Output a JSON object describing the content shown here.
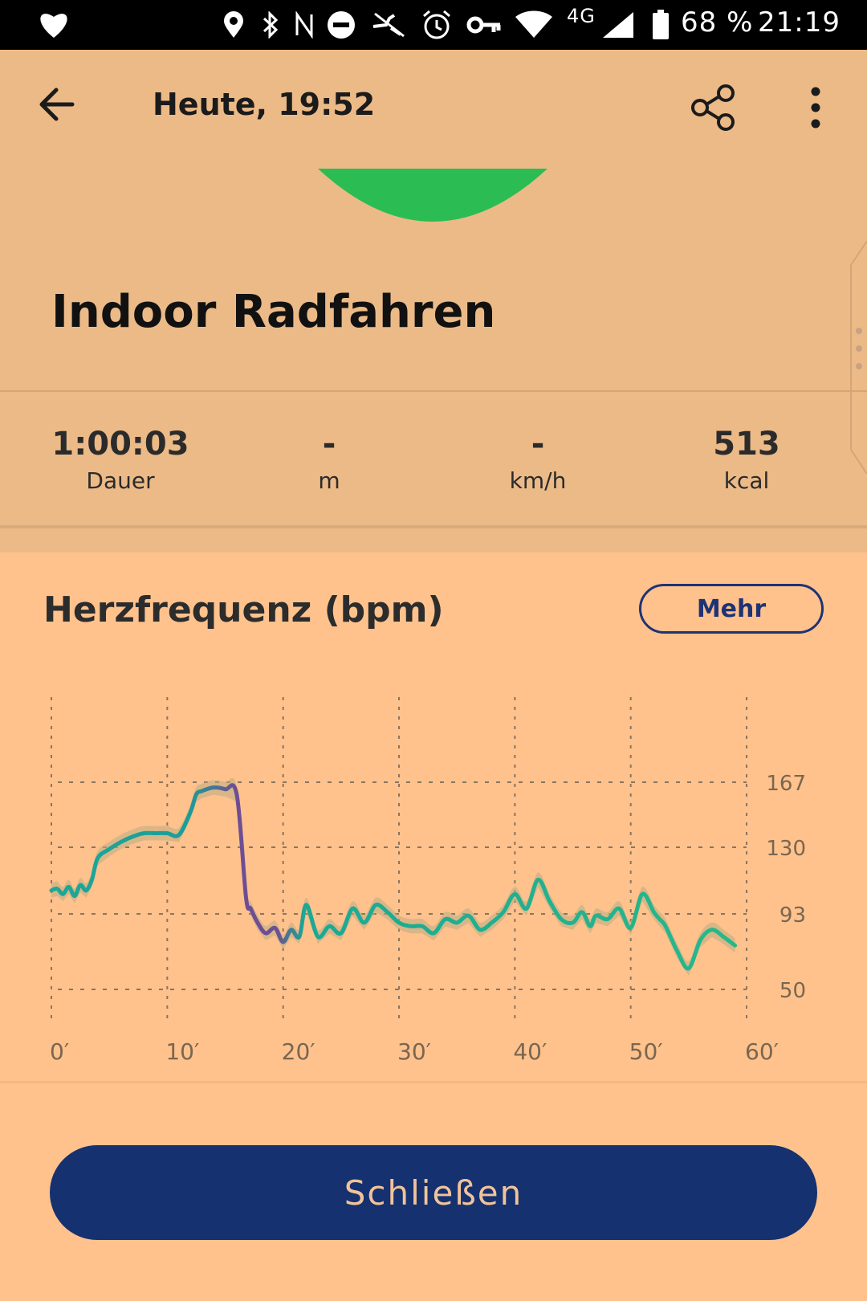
{
  "status_bar": {
    "icons": [
      "heart-icon",
      "location-icon",
      "bluetooth-icon",
      "nfc-icon",
      "do-not-disturb-icon",
      "no-sync-icon",
      "alarm-icon",
      "vpn-key-icon",
      "wifi-icon",
      "signal-icon",
      "battery-icon"
    ],
    "network": "4G",
    "battery": "68 %",
    "time": "21:19"
  },
  "header": {
    "title": "Heute, 19:52"
  },
  "activity": {
    "name": "Indoor Radfahren",
    "badge_color": "#2bbd53",
    "stats": [
      {
        "value": "1:00:03",
        "unit": "Dauer"
      },
      {
        "value": "-",
        "unit": "m"
      },
      {
        "value": "-",
        "unit": "km/h"
      },
      {
        "value": "513",
        "unit": "kcal"
      }
    ]
  },
  "heart_rate": {
    "title": "Herzfrequenz (bpm)",
    "more_label": "Mehr"
  },
  "chart_data": {
    "type": "line",
    "title": "Herzfrequenz (bpm)",
    "x_ticks": [
      "0′",
      "10′",
      "20′",
      "30′",
      "40′",
      "50′",
      "60′"
    ],
    "y_ticks": [
      "167",
      "130",
      "93",
      "50"
    ],
    "y_tick_values": [
      167,
      130,
      93,
      50
    ],
    "xlim": [
      0,
      60
    ],
    "grid": true,
    "series": [
      {
        "x": [
          0,
          0.5,
          1,
          1.5,
          2,
          2.5,
          3,
          3.5,
          4,
          5,
          6,
          7,
          8,
          9,
          10,
          11,
          12,
          12.5,
          13,
          14,
          15,
          16,
          16.8,
          17.2,
          17.8,
          18.5,
          19.3,
          20,
          20.7,
          21.4,
          22,
          23,
          24,
          25,
          26,
          27,
          28,
          29,
          30,
          31,
          32,
          33,
          34,
          35,
          36,
          37,
          38,
          39,
          40,
          41,
          42,
          43,
          44,
          45,
          45.8,
          46.5,
          47,
          48,
          49,
          50,
          51,
          52,
          52.5,
          53,
          54,
          55,
          56,
          57,
          58,
          59
        ],
        "y": [
          106,
          107,
          104,
          108,
          103,
          109,
          106,
          112,
          124,
          129,
          133,
          136,
          138,
          138,
          138,
          137,
          150,
          160,
          162,
          164,
          163,
          160,
          102,
          96,
          88,
          82,
          85,
          77,
          84,
          80,
          98,
          80,
          86,
          82,
          96,
          88,
          98,
          94,
          88,
          86,
          86,
          82,
          90,
          88,
          92,
          84,
          88,
          94,
          104,
          96,
          112,
          100,
          90,
          88,
          94,
          86,
          92,
          90,
          96,
          85,
          104,
          94,
          90,
          86,
          72,
          62,
          78,
          84,
          80,
          75
        ],
        "color_start": "#1ba898",
        "color_peak": "#6e4e93"
      }
    ]
  },
  "footer": {
    "close_label": "Schließen"
  }
}
